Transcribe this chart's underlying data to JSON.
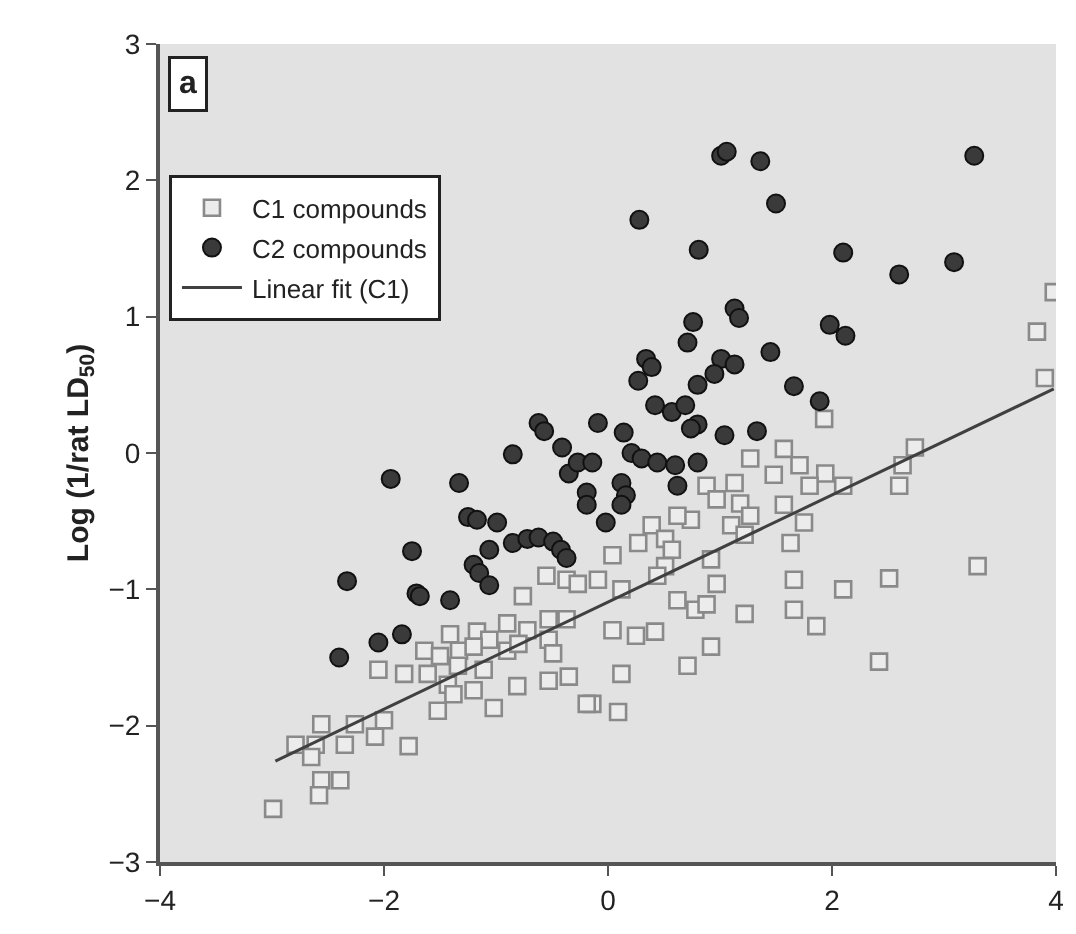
{
  "chart_data": {
    "type": "scatter",
    "ylabel": "Log (1/rat LD$_{50}$)",
    "annotations": [
      "a"
    ],
    "xlim": [
      -4,
      4
    ],
    "xticks": [
      -4,
      -2,
      0,
      2,
      4
    ],
    "ylim": [
      -3,
      3
    ],
    "yticks": [
      -3,
      -2,
      -1,
      0,
      1,
      2,
      3
    ],
    "grid": false,
    "legend": "top left",
    "series": [
      {
        "name": "C1 compounds",
        "marker": "square",
        "color": "#8a8a8a",
        "x": [
          3.98,
          3.83,
          3.9,
          1.93,
          1.57,
          2.74,
          2.63,
          2.6,
          1.27,
          1.71,
          1.94,
          2.1,
          1.8,
          1.48,
          0.88,
          1.13,
          0.97,
          1.18,
          1.57,
          1.75,
          1.27,
          1.1,
          0.74,
          0.62,
          0.39,
          0.51,
          0.27,
          0.57,
          1.63,
          1.22,
          0.92,
          0.51,
          0.04,
          -0.09,
          0.97,
          0.44,
          0.12,
          0.62,
          0.78,
          0.88,
          1.66,
          2.51,
          2.1,
          3.3,
          1.22,
          1.66,
          1.86,
          0.04,
          0.25,
          0.42,
          0.92,
          0.71,
          2.42,
          0.12,
          -0.14,
          0.09,
          -0.55,
          -0.76,
          -0.37,
          -0.27,
          -0.53,
          -0.37,
          -0.9,
          -0.72,
          -1.41,
          -1.17,
          -1.06,
          -0.9,
          -0.8,
          -0.53,
          -0.49,
          -1.64,
          -1.5,
          -1.33,
          -1.2,
          -1.34,
          -1.61,
          -2.05,
          -1.82,
          -1.11,
          -1.43,
          -1.2,
          -1.38,
          -0.81,
          -0.53,
          -0.35,
          -0.19,
          -1.02,
          -1.52,
          -2.0,
          -2.26,
          -2.56,
          -2.79,
          -2.61,
          -2.35,
          -2.08,
          -1.78,
          -2.65,
          -2.39,
          -2.56,
          -2.58,
          -2.99
        ],
        "values": [
          1.18,
          0.89,
          0.55,
          0.25,
          0.03,
          0.04,
          -0.09,
          -0.24,
          -0.04,
          -0.09,
          -0.15,
          -0.24,
          -0.24,
          -0.16,
          -0.24,
          -0.22,
          -0.34,
          -0.37,
          -0.38,
          -0.51,
          -0.46,
          -0.53,
          -0.49,
          -0.46,
          -0.53,
          -0.63,
          -0.66,
          -0.71,
          -0.66,
          -0.6,
          -0.78,
          -0.83,
          -0.75,
          -0.93,
          -0.96,
          -0.9,
          -1.0,
          -1.08,
          -1.15,
          -1.11,
          -0.93,
          -0.92,
          -1.0,
          -0.83,
          -1.18,
          -1.15,
          -1.27,
          -1.3,
          -1.34,
          -1.31,
          -1.42,
          -1.56,
          -1.53,
          -1.62,
          -1.84,
          -1.9,
          -0.9,
          -1.05,
          -0.93,
          -0.96,
          -1.22,
          -1.22,
          -1.25,
          -1.3,
          -1.33,
          -1.31,
          -1.37,
          -1.45,
          -1.4,
          -1.37,
          -1.47,
          -1.45,
          -1.49,
          -1.45,
          -1.42,
          -1.56,
          -1.62,
          -1.59,
          -1.62,
          -1.59,
          -1.7,
          -1.74,
          -1.77,
          -1.71,
          -1.67,
          -1.64,
          -1.84,
          -1.87,
          -1.89,
          -1.96,
          -1.99,
          -1.99,
          -2.14,
          -2.14,
          -2.14,
          -2.08,
          -2.15,
          -2.23,
          -2.4,
          -2.4,
          -2.51,
          -2.61
        ]
      },
      {
        "name": "C2 compounds",
        "marker": "circle",
        "color": "#3a3a3a",
        "x": [
          1.01,
          1.06,
          1.36,
          3.27,
          0.28,
          1.5,
          0.81,
          2.1,
          2.6,
          3.09,
          1.13,
          1.17,
          0.76,
          0.71,
          1.98,
          2.12,
          1.45,
          0.34,
          0.39,
          0.27,
          1.01,
          1.13,
          0.95,
          0.8,
          1.66,
          1.89,
          0.42,
          0.57,
          0.69,
          -0.09,
          0.8,
          1.04,
          1.33,
          0.14,
          -0.62,
          -0.57,
          -0.85,
          -0.41,
          -1.94,
          -1.33,
          -0.35,
          -0.27,
          -0.19,
          -0.19,
          -1.25,
          -1.17,
          -0.99,
          -0.85,
          -0.72,
          -0.62,
          -0.49,
          -0.42,
          -0.37,
          -1.06,
          -1.75,
          -1.2,
          -1.15,
          -1.06,
          -2.33,
          -1.71,
          -1.68,
          -1.41,
          -1.84,
          -2.05,
          -2.4,
          0.74,
          0.21,
          0.3,
          0.44,
          0.6,
          0.12,
          0.16,
          0.12,
          -0.02,
          0.62,
          0.8,
          -0.14
        ],
        "values": [
          2.18,
          2.21,
          2.14,
          2.18,
          1.71,
          1.83,
          1.49,
          1.47,
          1.31,
          1.4,
          1.06,
          0.99,
          0.96,
          0.81,
          0.94,
          0.86,
          0.74,
          0.69,
          0.63,
          0.53,
          0.69,
          0.65,
          0.58,
          0.5,
          0.49,
          0.38,
          0.35,
          0.3,
          0.35,
          0.22,
          0.21,
          0.13,
          0.16,
          0.15,
          0.22,
          0.16,
          -0.01,
          0.04,
          -0.19,
          -0.22,
          -0.15,
          -0.07,
          -0.29,
          -0.38,
          -0.47,
          -0.49,
          -0.51,
          -0.66,
          -0.63,
          -0.62,
          -0.65,
          -0.71,
          -0.77,
          -0.71,
          -0.72,
          -0.82,
          -0.88,
          -0.97,
          -0.94,
          -1.03,
          -1.05,
          -1.08,
          -1.33,
          -1.39,
          -1.5,
          0.18,
          0.0,
          -0.04,
          -0.07,
          -0.09,
          -0.22,
          -0.31,
          -0.38,
          -0.51,
          -0.24,
          -0.07,
          -0.07
        ]
      },
      {
        "name": "Linear fit (C1)",
        "type": "line",
        "marker": "none",
        "line_style": "solid",
        "color": "#404040",
        "x": [
          -2.97,
          3.98
        ],
        "values": [
          -2.26,
          0.47
        ]
      }
    ]
  }
}
